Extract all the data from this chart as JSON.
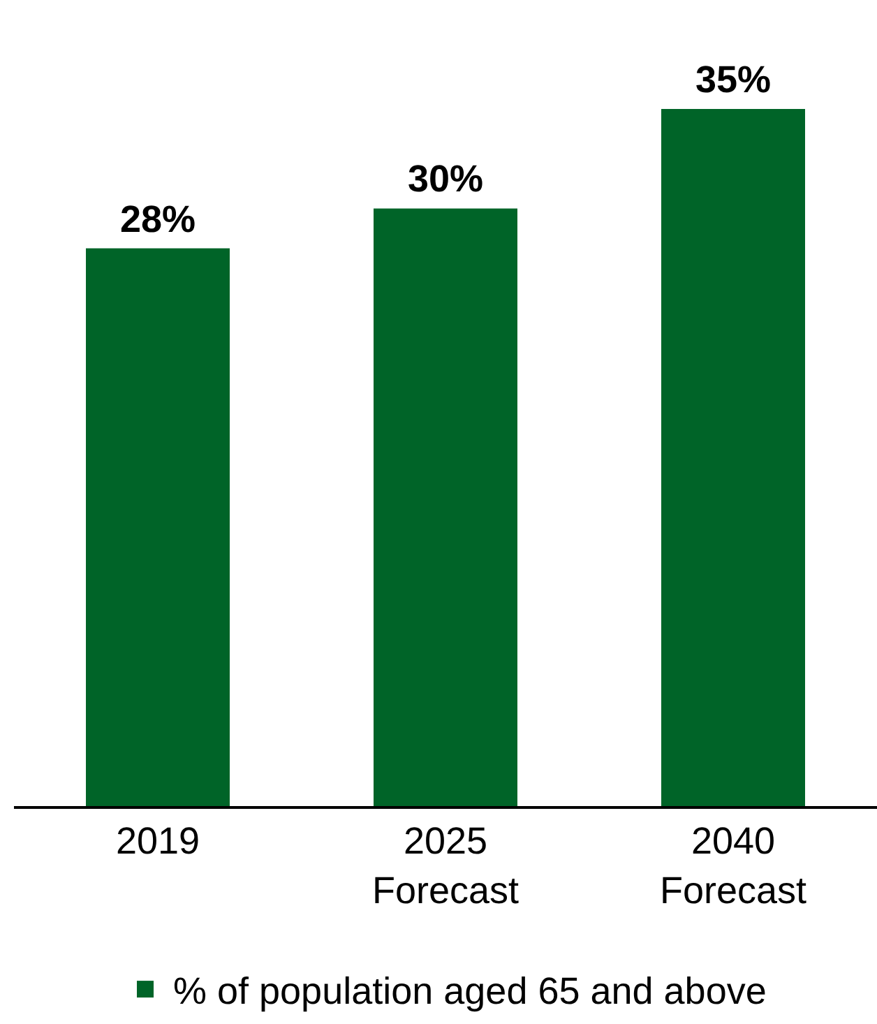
{
  "chart_data": {
    "type": "bar",
    "categories": [
      "2019",
      "2025 Forecast",
      "2040 Forecast"
    ],
    "series": [
      {
        "name": "% of population aged 65 and above",
        "color": "#006428",
        "values": [
          28,
          30,
          35
        ],
        "value_labels": [
          "28%",
          "30%",
          "35%"
        ]
      }
    ],
    "tick_labels": "x",
    "legend": "bottom"
  }
}
